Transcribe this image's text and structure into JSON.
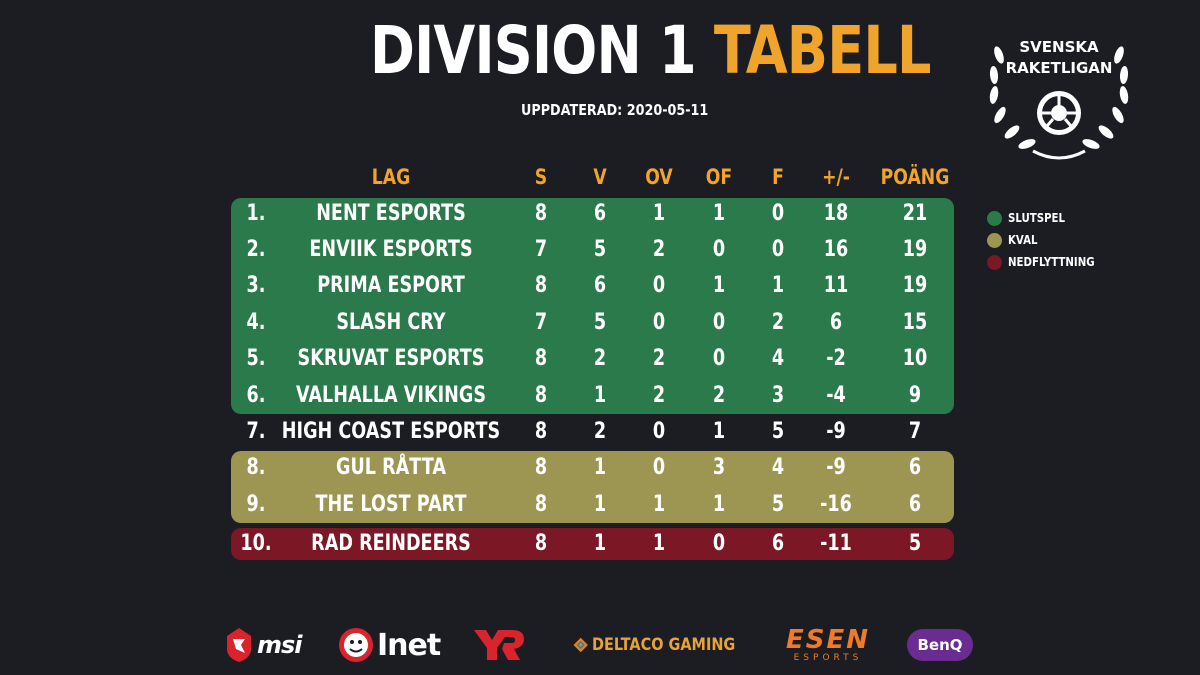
{
  "header": {
    "title_white": "DIVISION 1",
    "title_orange": "TABELL",
    "updated": "UPPDATERAD: 2020-05-11"
  },
  "logo": {
    "line1": "SVENSKA",
    "line2": "RAKETLIGAN"
  },
  "columns": [
    "LAG",
    "S",
    "V",
    "OV",
    "OF",
    "F",
    "+/-",
    "POÄNG"
  ],
  "rows": [
    {
      "pos": "1.",
      "team": "NENT ESPORTS",
      "s": "8",
      "v": "6",
      "ov": "1",
      "of": "1",
      "f": "0",
      "diff": "18",
      "pts": "21",
      "zone": "playoff"
    },
    {
      "pos": "2.",
      "team": "ENVIIK ESPORTS",
      "s": "7",
      "v": "5",
      "ov": "2",
      "of": "0",
      "f": "0",
      "diff": "16",
      "pts": "19",
      "zone": "playoff"
    },
    {
      "pos": "3.",
      "team": "PRIMA ESPORT",
      "s": "8",
      "v": "6",
      "ov": "0",
      "of": "1",
      "f": "1",
      "diff": "11",
      "pts": "19",
      "zone": "playoff"
    },
    {
      "pos": "4.",
      "team": "SLASH CRY",
      "s": "7",
      "v": "5",
      "ov": "0",
      "of": "0",
      "f": "2",
      "diff": "6",
      "pts": "15",
      "zone": "playoff"
    },
    {
      "pos": "5.",
      "team": "SKRUVAT ESPORTS",
      "s": "8",
      "v": "2",
      "ov": "2",
      "of": "0",
      "f": "4",
      "diff": "-2",
      "pts": "10",
      "zone": "playoff"
    },
    {
      "pos": "6.",
      "team": "VALHALLA VIKINGS",
      "s": "8",
      "v": "1",
      "ov": "2",
      "of": "2",
      "f": "3",
      "diff": "-4",
      "pts": "9",
      "zone": "playoff"
    },
    {
      "pos": "7.",
      "team": "HIGH COAST ESPORTS",
      "s": "8",
      "v": "2",
      "ov": "0",
      "of": "1",
      "f": "5",
      "diff": "-9",
      "pts": "7",
      "zone": "none"
    },
    {
      "pos": "8.",
      "team": "GUL RÅTTA",
      "s": "8",
      "v": "1",
      "ov": "0",
      "of": "3",
      "f": "4",
      "diff": "-9",
      "pts": "6",
      "zone": "kval"
    },
    {
      "pos": "9.",
      "team": "THE LOST PART",
      "s": "8",
      "v": "1",
      "ov": "1",
      "of": "1",
      "f": "5",
      "diff": "-16",
      "pts": "6",
      "zone": "kval"
    },
    {
      "pos": "10.",
      "team": "RAD REINDEERS",
      "s": "8",
      "v": "1",
      "ov": "1",
      "of": "0",
      "f": "6",
      "diff": "-11",
      "pts": "5",
      "zone": "relegation"
    }
  ],
  "legend": [
    {
      "label": "SLUTSPEL",
      "color": "#2b7a4b"
    },
    {
      "label": "KVAL",
      "color": "#9c9652"
    },
    {
      "label": "NEDFLYTTNING",
      "color": "#7c1725"
    }
  ],
  "colors": {
    "accent": "#f0a42b",
    "background": "#1b1d22"
  },
  "sponsors": [
    {
      "name": "msi",
      "icon": "msi-dragon-icon"
    },
    {
      "name": "Inet",
      "icon": "inet-mascot-icon"
    },
    {
      "name": "YLR",
      "icon": "ylr-logo-icon"
    },
    {
      "name": "DELTACO GAMING",
      "icon": "deltaco-diamond-icon"
    },
    {
      "name": "ESEN",
      "sub": "ESPORTS",
      "icon": "esen-logo-icon"
    },
    {
      "name": "BenQ",
      "icon": "benq-logo-icon"
    }
  ]
}
